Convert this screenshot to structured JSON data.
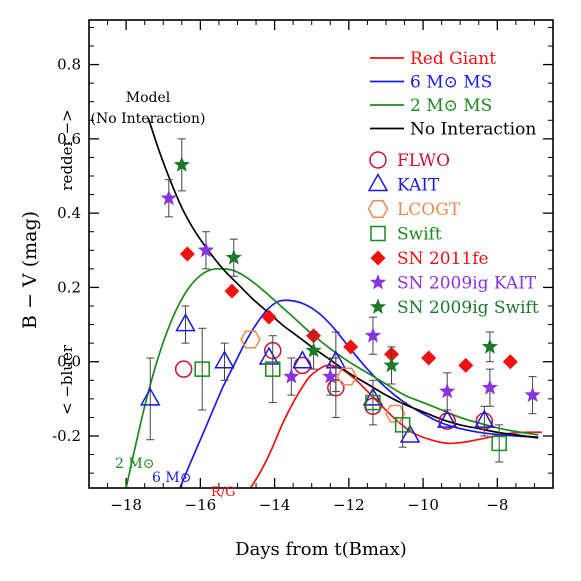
{
  "chart_data": {
    "type": "scatter",
    "xlabel": "Days from t(Bmax)",
    "ylabel": "B − V (mag)",
    "ylabel_upper": "redder −>",
    "ylabel_lower": "< −bluer",
    "xlim": [
      -19,
      -6.5
    ],
    "ylim": [
      -0.34,
      0.92
    ],
    "xticks": [
      -18,
      -16,
      -14,
      -12,
      -10,
      -8
    ],
    "xtick_labels": [
      "−18",
      "−16",
      "−14",
      "−12",
      "−10",
      "−8"
    ],
    "yticks": [
      -0.2,
      0.0,
      0.2,
      0.4,
      0.6,
      0.8
    ],
    "ytick_labels": [
      "-0.2",
      "0.0",
      "0.2",
      "0.4",
      "0.6",
      "0.8"
    ],
    "legend_position": "top-right",
    "annotations": {
      "model_line1": "Model",
      "model_line2": "(No Interaction)",
      "label_2msun": "2 M⊙",
      "label_6msun": "6 M⊙",
      "label_rg": "R/G"
    },
    "models": [
      {
        "name": "Red Giant",
        "color": "#ee1111",
        "x": [
          -14.65,
          -14.4,
          -14.1,
          -13.8,
          -13.5,
          -13.2,
          -13.0,
          -12.6,
          -12.2,
          -11.8,
          -11.3,
          -10.8,
          -10.3,
          -9.8,
          -9.3,
          -8.8,
          -8.3,
          -7.8,
          -7.3,
          -6.8
        ],
        "y": [
          -0.34,
          -0.3,
          -0.24,
          -0.17,
          -0.11,
          -0.06,
          -0.035,
          -0.01,
          -0.02,
          -0.05,
          -0.1,
          -0.15,
          -0.19,
          -0.21,
          -0.22,
          -0.215,
          -0.205,
          -0.195,
          -0.19,
          -0.19
        ]
      },
      {
        "name": "6 M⊙ MS",
        "color": "#1a1aee",
        "x": [
          -16.55,
          -16.3,
          -16.0,
          -15.7,
          -15.4,
          -15.1,
          -14.8,
          -14.5,
          -14.2,
          -13.9,
          -13.6,
          -13.2,
          -12.8,
          -12.4,
          -12.0,
          -11.5,
          -11.0,
          -10.5,
          -10.0,
          -9.5,
          -9.0,
          -8.5,
          -8.0,
          -7.5,
          -6.9
        ],
        "y": [
          -0.34,
          -0.28,
          -0.21,
          -0.14,
          -0.07,
          -0.01,
          0.05,
          0.1,
          0.14,
          0.162,
          0.165,
          0.155,
          0.13,
          0.09,
          0.04,
          -0.02,
          -0.07,
          -0.11,
          -0.14,
          -0.165,
          -0.18,
          -0.19,
          -0.196,
          -0.2,
          -0.203
        ]
      },
      {
        "name": "2 M⊙ MS",
        "color": "#1a8a1a",
        "x": [
          -18.0,
          -17.8,
          -17.5,
          -17.2,
          -16.9,
          -16.6,
          -16.3,
          -16.0,
          -15.7,
          -15.4,
          -15.1,
          -14.8,
          -14.4,
          -14.0,
          -13.5,
          -13.0,
          -12.5,
          -12.0,
          -11.5,
          -11.0,
          -10.5,
          -10.0,
          -9.5,
          -9.0,
          -8.5,
          -8.0,
          -7.5,
          -6.9
        ],
        "y": [
          -0.34,
          -0.25,
          -0.12,
          -0.01,
          0.08,
          0.15,
          0.2,
          0.232,
          0.248,
          0.25,
          0.245,
          0.23,
          0.2,
          0.165,
          0.12,
          0.075,
          0.035,
          0.0,
          -0.03,
          -0.06,
          -0.09,
          -0.11,
          -0.13,
          -0.15,
          -0.165,
          -0.178,
          -0.188,
          -0.197
        ]
      },
      {
        "name": "No Interaction",
        "color": "#000000",
        "x": [
          -17.4,
          -17.1,
          -16.8,
          -16.5,
          -16.2,
          -15.9,
          -15.6,
          -15.3,
          -15.0,
          -14.6,
          -14.2,
          -13.8,
          -13.4,
          -13.0,
          -12.5,
          -12.0,
          -11.5,
          -11.0,
          -10.5,
          -10.0,
          -9.5,
          -9.0,
          -8.5,
          -8.0,
          -7.5,
          -6.9
        ],
        "y": [
          0.655,
          0.565,
          0.485,
          0.415,
          0.36,
          0.315,
          0.275,
          0.24,
          0.21,
          0.17,
          0.135,
          0.1,
          0.07,
          0.04,
          0.005,
          -0.03,
          -0.06,
          -0.09,
          -0.115,
          -0.135,
          -0.155,
          -0.17,
          -0.18,
          -0.19,
          -0.197,
          -0.205
        ]
      }
    ],
    "series": [
      {
        "name": "FLWO",
        "color": "#cc1133",
        "marker": "circle",
        "x": [
          -16.45,
          -14.05,
          -13.25,
          -12.35,
          -11.35,
          -9.35,
          -8.35
        ],
        "y": [
          -0.02,
          0.03,
          -0.01,
          -0.07,
          -0.12,
          -0.16,
          -0.16
        ],
        "yerr": [
          0.0,
          0.0,
          0.0,
          0.08,
          0.0,
          0.0,
          0.0
        ]
      },
      {
        "name": "KAIT",
        "color": "#1a1add",
        "marker": "triangle",
        "x": [
          -17.35,
          -16.4,
          -15.35,
          -14.15,
          -13.25,
          -12.35,
          -11.35,
          -10.35,
          -9.35,
          -8.35
        ],
        "y": [
          -0.1,
          0.1,
          0.0,
          0.01,
          0.0,
          0.0,
          -0.1,
          -0.2,
          -0.16,
          -0.16
        ],
        "yerr": [
          0.11,
          0.05,
          0.05,
          0.0,
          0.0,
          0.08,
          0.0,
          0.0,
          0.0,
          0.04
        ]
      },
      {
        "name": "LCOGT",
        "color": "#f08a50",
        "marker": "hexagon",
        "x": [
          -14.65,
          -12.05,
          -10.75
        ],
        "y": [
          0.06,
          -0.04,
          -0.14
        ],
        "yerr": [
          0.0,
          0.0,
          0.0
        ]
      },
      {
        "name": "Swift",
        "color": "#1a8a1a",
        "marker": "square",
        "x": [
          -15.95,
          -14.05,
          -11.35,
          -10.55,
          -7.95
        ],
        "y": [
          -0.02,
          -0.02,
          -0.11,
          -0.17,
          -0.22
        ],
        "yerr": [
          0.11,
          0.09,
          0.06,
          0.06,
          0.05
        ]
      },
      {
        "name": "SN 2011fe",
        "color": "#ee1111",
        "marker": "diamond",
        "x": [
          -16.35,
          -15.15,
          -14.15,
          -12.95,
          -11.95,
          -10.85,
          -9.85,
          -8.85,
          -7.65
        ],
        "y": [
          0.29,
          0.19,
          0.12,
          0.07,
          0.04,
          0.02,
          0.01,
          -0.01,
          0.0
        ],
        "yerr": [
          0,
          0,
          0,
          0,
          0,
          0,
          0,
          0,
          0
        ]
      },
      {
        "name": "SN 2009ig KAIT",
        "color": "#8833dd",
        "marker": "star",
        "x": [
          -16.85,
          -15.85,
          -13.55,
          -12.5,
          -11.35,
          -9.35,
          -8.2,
          -7.05
        ],
        "y": [
          0.44,
          0.3,
          -0.04,
          -0.04,
          0.07,
          -0.08,
          -0.07,
          -0.09
        ],
        "yerr": [
          0.05,
          0.05,
          0.05,
          0.05,
          0.05,
          0.05,
          0.05,
          0.05
        ]
      },
      {
        "name": "SN 2009ig Swift",
        "color": "#1a7a2a",
        "marker": "star",
        "x": [
          -16.5,
          -15.1,
          -12.95,
          -10.85,
          -8.2
        ],
        "y": [
          0.53,
          0.28,
          0.03,
          -0.01,
          0.04
        ],
        "yerr": [
          0.07,
          0.05,
          0.05,
          0.05,
          0.04
        ]
      }
    ]
  }
}
